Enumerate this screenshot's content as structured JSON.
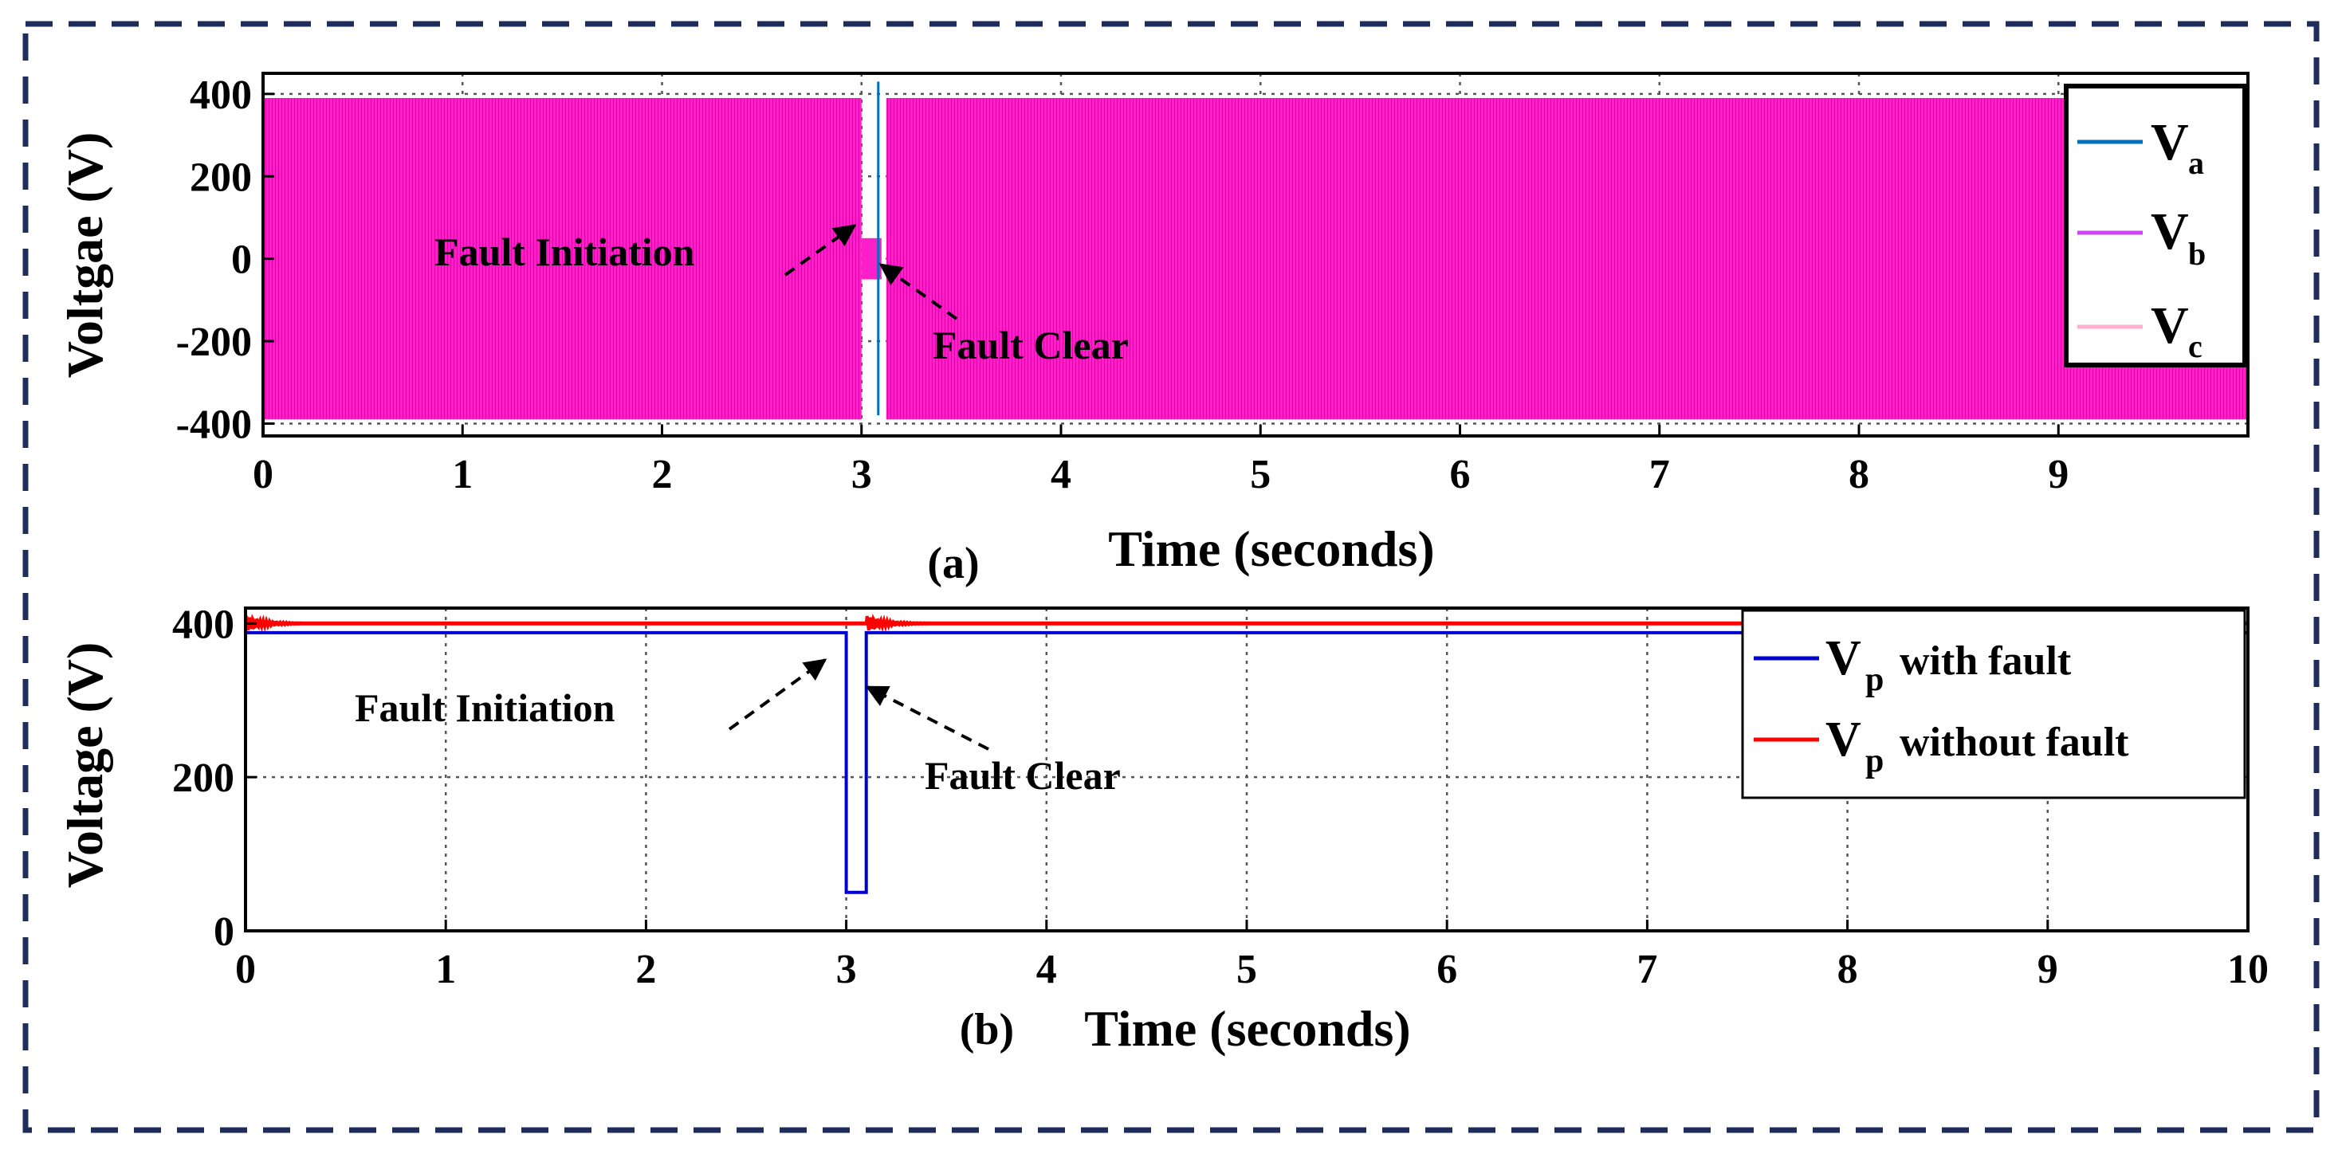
{
  "chart_data": [
    {
      "panel_label": "(a)",
      "type": "line",
      "xlabel": "Time (seconds)",
      "ylabel": "Voltgae (V)",
      "xlim": [
        0,
        9.95
      ],
      "ylim": [
        -430,
        450
      ],
      "xticks": [
        0,
        1,
        2,
        3,
        4,
        5,
        6,
        7,
        8,
        9
      ],
      "yticks": [
        400,
        200,
        0,
        -200,
        -400
      ],
      "grid": true,
      "legend_placement": "top-right",
      "series": [
        {
          "name": "V",
          "subscript": "a",
          "color": "#0072BD"
        },
        {
          "name": "V",
          "subscript": "b",
          "color": "#CC44EE"
        },
        {
          "name": "V",
          "subscript": "c",
          "color": "#FFB0CC"
        }
      ],
      "signal": {
        "amplitude": 390,
        "frequency_hz": 50,
        "fill_color": "#FF1FC8",
        "fault_start": 3.0,
        "fault_end": 3.1,
        "fault_level": 50
      },
      "annotations": [
        {
          "text": "Fault Initiation",
          "points_to_x": 3.0
        },
        {
          "text": "Fault Clear",
          "points_to_x": 3.1
        }
      ]
    },
    {
      "panel_label": "(b)",
      "type": "line",
      "xlabel": "Time (seconds)",
      "ylabel": "Voltage (V)",
      "xlim": [
        0,
        10
      ],
      "ylim": [
        0,
        420
      ],
      "xticks": [
        0,
        1,
        2,
        3,
        4,
        5,
        6,
        7,
        8,
        9,
        10
      ],
      "yticks": [
        400,
        200,
        0
      ],
      "grid": true,
      "legend_placement": "top-right",
      "series": [
        {
          "name": "V",
          "subscript": "p",
          "suffix": " with fault",
          "color": "#0000CC",
          "x": [
            0,
            2.99,
            3.0,
            3.0,
            3.1,
            3.1,
            10
          ],
          "y": [
            388,
            388,
            388,
            50,
            50,
            388,
            388
          ]
        },
        {
          "name": "V",
          "subscript": "p",
          "suffix": " without fault",
          "color": "#FF0000",
          "x": [
            0,
            10
          ],
          "y": [
            400,
            400
          ]
        }
      ],
      "annotations": [
        {
          "text": "Fault Initiation",
          "points_to_x": 3.0
        },
        {
          "text": "Fault Clear",
          "points_to_x": 3.1
        }
      ]
    }
  ]
}
